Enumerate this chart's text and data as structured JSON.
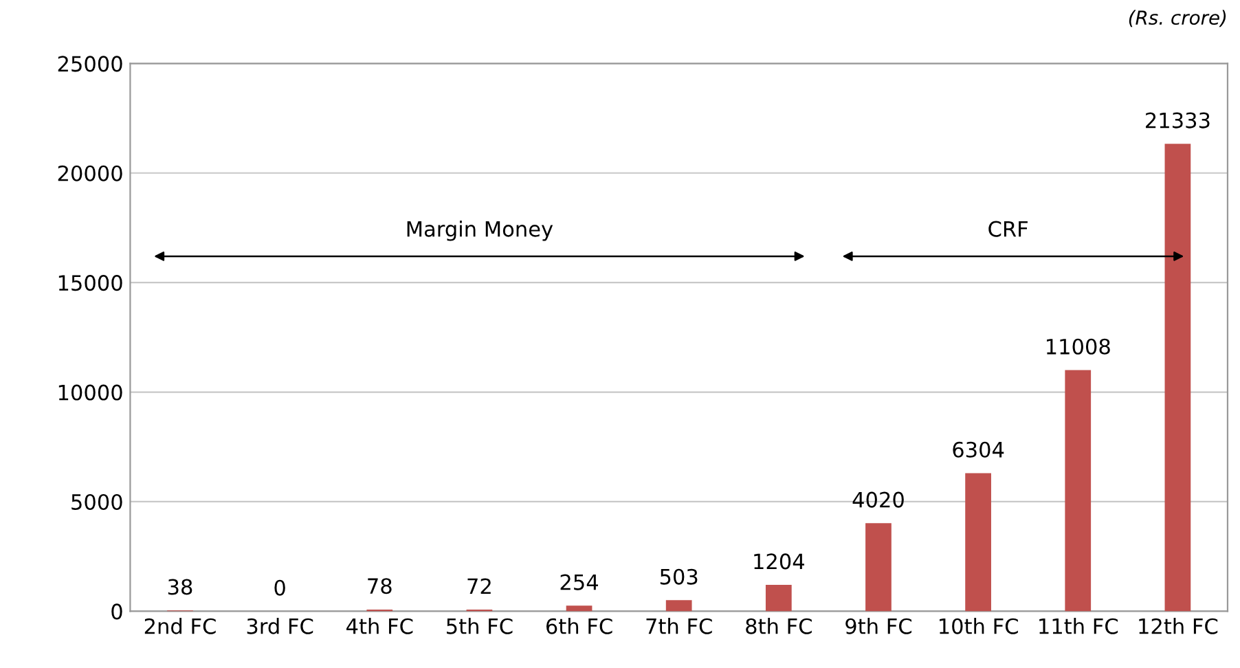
{
  "chart_data": {
    "type": "bar",
    "categories": [
      "2nd FC",
      "3rd FC",
      "4th FC",
      "5th FC",
      "6th FC",
      "7th FC",
      "8th FC",
      "9th FC",
      "10th FC",
      "11th FC",
      "12th FC"
    ],
    "values": [
      38,
      0,
      78,
      72,
      254,
      503,
      1204,
      4020,
      6304,
      11008,
      21333
    ],
    "color": "#c0504d",
    "ylim": [
      0,
      25000
    ],
    "yticks": [
      0,
      5000,
      10000,
      15000,
      20000,
      25000
    ],
    "grid": "y",
    "data_labels": true,
    "annotations": [
      "(Rs. crore)",
      "Margin Money",
      "CRF"
    ]
  }
}
